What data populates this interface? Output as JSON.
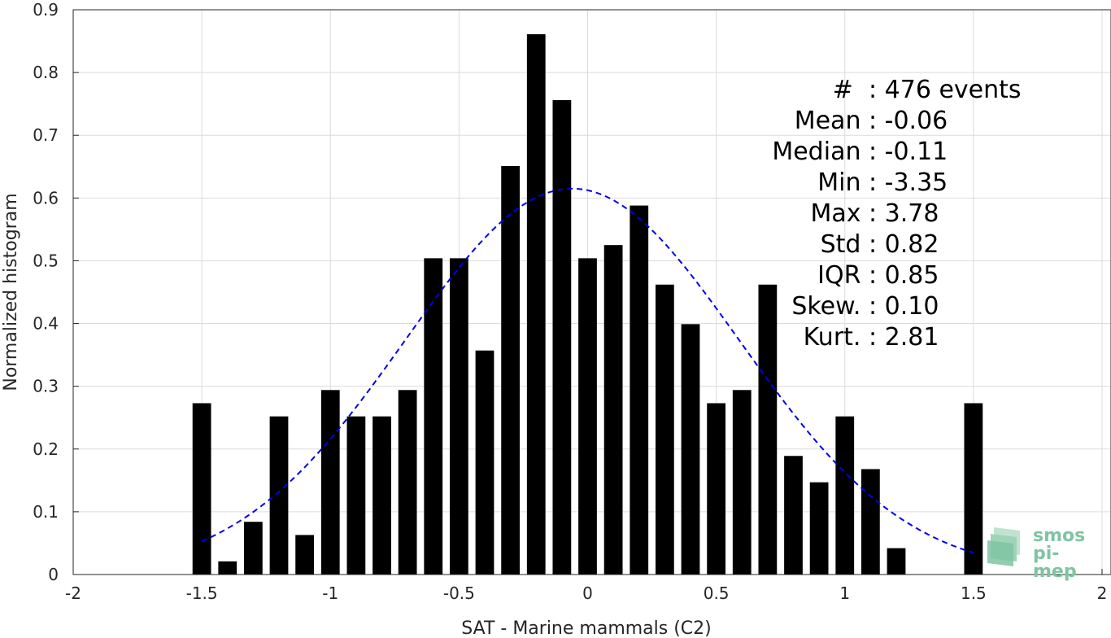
{
  "chart_data": {
    "type": "bar",
    "xlabel": "SAT - Marine mammals (C2)",
    "ylabel": "Normalized histogram",
    "xlim": [
      -2,
      2
    ],
    "ylim": [
      0,
      0.9
    ],
    "xticks": [
      "-2",
      "-1.5",
      "-1",
      "-0.5",
      "0",
      "0.5",
      "1",
      "1.5",
      "2"
    ],
    "yticks": [
      "0",
      "0.1",
      "0.2",
      "0.3",
      "0.4",
      "0.5",
      "0.6",
      "0.7",
      "0.8",
      "0.9"
    ],
    "grid": true,
    "bar_color": "#000000",
    "bars": {
      "x": [
        -1.5,
        -1.4,
        -1.3,
        -1.2,
        -1.1,
        -1.0,
        -0.9,
        -0.8,
        -0.7,
        -0.6,
        -0.5,
        -0.4,
        -0.3,
        -0.2,
        -0.1,
        0.0,
        0.1,
        0.2,
        0.3,
        0.4,
        0.5,
        0.6,
        0.7,
        0.8,
        0.9,
        1.0,
        1.1,
        1.2,
        1.5
      ],
      "values": [
        0.273,
        0.021,
        0.084,
        0.252,
        0.063,
        0.294,
        0.252,
        0.252,
        0.294,
        0.504,
        0.504,
        0.357,
        0.651,
        0.861,
        0.756,
        0.504,
        0.525,
        0.588,
        0.462,
        0.399,
        0.273,
        0.294,
        0.462,
        0.189,
        0.147,
        0.252,
        0.168,
        0.042,
        0.273
      ]
    },
    "fit_curve": {
      "type": "normal",
      "color": "#0000ee",
      "style": "dashed",
      "mean": -0.06,
      "std": 0.65,
      "peak": 0.615,
      "x_range": [
        -1.5,
        1.5
      ]
    }
  },
  "stats": [
    {
      "label": "#  ",
      "value": ": 476 events"
    },
    {
      "label": "Mean ",
      "value": ": -0.06"
    },
    {
      "label": "Median ",
      "value": ": -0.11"
    },
    {
      "label": "Min ",
      "value": ": -3.35"
    },
    {
      "label": "Max ",
      "value": ": 3.78"
    },
    {
      "label": "Std ",
      "value": ": 0.82"
    },
    {
      "label": "IQR ",
      "value": ": 0.85"
    },
    {
      "label": "Skew. ",
      "value": ": 0.10"
    },
    {
      "label": "Kurt. ",
      "value": ": 2.81"
    }
  ],
  "logo": {
    "line1": "smos",
    "line2": "pi-mep",
    "color": "#7fc4a2"
  }
}
